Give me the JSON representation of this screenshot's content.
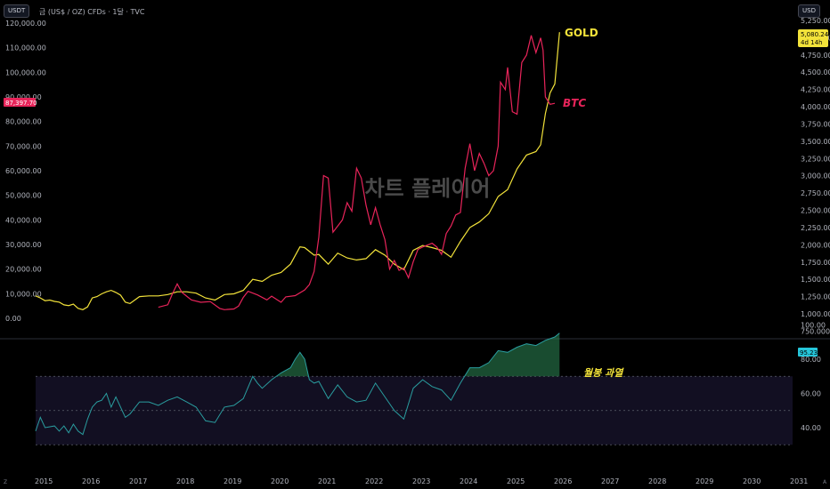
{
  "header": {
    "left_currency": "USDT",
    "right_currency": "USD",
    "symbol_title": "금 (US$ / OZ) CFDs · 1달 · TVC"
  },
  "watermark": "차트 플레이어",
  "badges": {
    "gold_price": "5,080.240",
    "gold_countdown": "4d 14h",
    "btc_price": "87,397.70",
    "rsi_value": "95.23"
  },
  "colors": {
    "gold": "#f2e23a",
    "btc": "#e8245a",
    "rsi": "#2a9d9f",
    "rsi_overbought": "#2e8b57",
    "background": "#000000"
  },
  "labels": {
    "gold": "GOLD",
    "btc": "BTC",
    "rsi_note": "월봉 과열"
  },
  "bottom_icons": {
    "left": "Z",
    "right": "A"
  },
  "chart_data": [
    {
      "type": "line",
      "title": "",
      "x_ticks": [
        "2015",
        "2016",
        "2017",
        "2018",
        "2019",
        "2020",
        "2021",
        "2022",
        "2023",
        "2024",
        "2025",
        "2026",
        "2027",
        "2028",
        "2029",
        "2030",
        "2031"
      ],
      "btc_axis_ticks": [
        "120,000.00",
        "110,000.00",
        "100,000.00",
        "90,000.00",
        "80,000.00",
        "70,000.00",
        "60,000.00",
        "50,000.00",
        "40,000.00",
        "30,000.00",
        "20,000.00",
        "10,000.00",
        "0.00"
      ],
      "btc_ylim": [
        0,
        120000
      ],
      "gold_axis_ticks": [
        "5,250.000",
        "5,000.000",
        "4,750.000",
        "4,500.000",
        "4,250.000",
        "4,000.000",
        "3,750.000",
        "3,500.000",
        "3,250.000",
        "3,000.000",
        "2,750.000",
        "2,500.000",
        "2,250.000",
        "2,000.000",
        "1,750.000",
        "1,500.000",
        "1,250.000",
        "1,000.000",
        "750.000"
      ],
      "gold_ylim": [
        750,
        5250
      ],
      "series": [
        {
          "name": "GOLD",
          "axis": "right",
          "points": [
            [
              2015.0,
              1260
            ],
            [
              2015.1,
              1230
            ],
            [
              2015.2,
              1190
            ],
            [
              2015.3,
              1200
            ],
            [
              2015.4,
              1180
            ],
            [
              2015.5,
              1170
            ],
            [
              2015.6,
              1130
            ],
            [
              2015.7,
              1120
            ],
            [
              2015.8,
              1140
            ],
            [
              2015.9,
              1080
            ],
            [
              2016.0,
              1060
            ],
            [
              2016.1,
              1100
            ],
            [
              2016.2,
              1230
            ],
            [
              2016.3,
              1250
            ],
            [
              2016.4,
              1290
            ],
            [
              2016.5,
              1320
            ],
            [
              2016.6,
              1340
            ],
            [
              2016.7,
              1310
            ],
            [
              2016.8,
              1270
            ],
            [
              2016.9,
              1170
            ],
            [
              2017.0,
              1150
            ],
            [
              2017.2,
              1250
            ],
            [
              2017.4,
              1260
            ],
            [
              2017.6,
              1260
            ],
            [
              2017.8,
              1280
            ],
            [
              2018.0,
              1320
            ],
            [
              2018.2,
              1320
            ],
            [
              2018.4,
              1300
            ],
            [
              2018.6,
              1230
            ],
            [
              2018.8,
              1200
            ],
            [
              2019.0,
              1280
            ],
            [
              2019.2,
              1290
            ],
            [
              2019.4,
              1340
            ],
            [
              2019.6,
              1500
            ],
            [
              2019.8,
              1470
            ],
            [
              2020.0,
              1560
            ],
            [
              2020.2,
              1600
            ],
            [
              2020.4,
              1720
            ],
            [
              2020.6,
              1970
            ],
            [
              2020.7,
              1960
            ],
            [
              2020.9,
              1850
            ],
            [
              2021.0,
              1860
            ],
            [
              2021.2,
              1720
            ],
            [
              2021.4,
              1880
            ],
            [
              2021.6,
              1810
            ],
            [
              2021.8,
              1780
            ],
            [
              2022.0,
              1800
            ],
            [
              2022.2,
              1930
            ],
            [
              2022.4,
              1850
            ],
            [
              2022.6,
              1720
            ],
            [
              2022.8,
              1640
            ],
            [
              2023.0,
              1920
            ],
            [
              2023.2,
              1990
            ],
            [
              2023.4,
              1960
            ],
            [
              2023.6,
              1920
            ],
            [
              2023.8,
              1820
            ],
            [
              2024.0,
              2050
            ],
            [
              2024.2,
              2250
            ],
            [
              2024.4,
              2330
            ],
            [
              2024.6,
              2450
            ],
            [
              2024.8,
              2700
            ],
            [
              2025.0,
              2800
            ],
            [
              2025.2,
              3100
            ],
            [
              2025.4,
              3300
            ],
            [
              2025.6,
              3350
            ],
            [
              2025.7,
              3450
            ],
            [
              2025.8,
              3900
            ],
            [
              2025.9,
              4200
            ],
            [
              2026.0,
              4330
            ],
            [
              2026.1,
              5080
            ]
          ]
        },
        {
          "name": "BTC",
          "axis": "left",
          "points": [
            [
              2017.6,
              4500
            ],
            [
              2017.8,
              5500
            ],
            [
              2017.9,
              10000
            ],
            [
              2018.0,
              14000
            ],
            [
              2018.1,
              10500
            ],
            [
              2018.2,
              9000
            ],
            [
              2018.3,
              7500
            ],
            [
              2018.5,
              6500
            ],
            [
              2018.7,
              6800
            ],
            [
              2018.9,
              4000
            ],
            [
              2019.0,
              3500
            ],
            [
              2019.2,
              3800
            ],
            [
              2019.3,
              5000
            ],
            [
              2019.4,
              8500
            ],
            [
              2019.5,
              11000
            ],
            [
              2019.7,
              9500
            ],
            [
              2019.9,
              7500
            ],
            [
              2020.0,
              9000
            ],
            [
              2020.2,
              6500
            ],
            [
              2020.3,
              8700
            ],
            [
              2020.5,
              9200
            ],
            [
              2020.7,
              11500
            ],
            [
              2020.8,
              13700
            ],
            [
              2020.9,
              19000
            ],
            [
              2021.0,
              33000
            ],
            [
              2021.1,
              58000
            ],
            [
              2021.2,
              57000
            ],
            [
              2021.3,
              35000
            ],
            [
              2021.5,
              40000
            ],
            [
              2021.6,
              47000
            ],
            [
              2021.7,
              43500
            ],
            [
              2021.8,
              61000
            ],
            [
              2021.9,
              57000
            ],
            [
              2022.0,
              46000
            ],
            [
              2022.1,
              38000
            ],
            [
              2022.2,
              45000
            ],
            [
              2022.3,
              38000
            ],
            [
              2022.4,
              32000
            ],
            [
              2022.5,
              20000
            ],
            [
              2022.6,
              23500
            ],
            [
              2022.7,
              19500
            ],
            [
              2022.8,
              20500
            ],
            [
              2022.9,
              16500
            ],
            [
              2023.0,
              23000
            ],
            [
              2023.1,
              28000
            ],
            [
              2023.2,
              29000
            ],
            [
              2023.4,
              30500
            ],
            [
              2023.5,
              29000
            ],
            [
              2023.6,
              26000
            ],
            [
              2023.7,
              34500
            ],
            [
              2023.8,
              37500
            ],
            [
              2023.9,
              42000
            ],
            [
              2024.0,
              43000
            ],
            [
              2024.1,
              61000
            ],
            [
              2024.2,
              71000
            ],
            [
              2024.3,
              60000
            ],
            [
              2024.4,
              67000
            ],
            [
              2024.5,
              63000
            ],
            [
              2024.6,
              58000
            ],
            [
              2024.7,
              60000
            ],
            [
              2024.8,
              70000
            ],
            [
              2024.85,
              96000
            ],
            [
              2024.95,
              93000
            ],
            [
              2025.0,
              102000
            ],
            [
              2025.1,
              84000
            ],
            [
              2025.2,
              83000
            ],
            [
              2025.3,
              104000
            ],
            [
              2025.4,
              107000
            ],
            [
              2025.5,
              115000
            ],
            [
              2025.6,
              108000
            ],
            [
              2025.7,
              114000
            ],
            [
              2025.75,
              109000
            ],
            [
              2025.8,
              90000
            ],
            [
              2025.9,
              87000
            ],
            [
              2026.0,
              87400
            ]
          ]
        }
      ]
    },
    {
      "type": "line",
      "title": "",
      "y_ticks": [
        "100.00",
        "80.00",
        "60.00",
        "40.00"
      ],
      "ylim": [
        28,
        102
      ],
      "overbought_level": 70,
      "midline_level": 50,
      "oversold_level": 30,
      "series": [
        {
          "name": "",
          "points": [
            [
              2015.0,
              38
            ],
            [
              2015.1,
              46
            ],
            [
              2015.2,
              40
            ],
            [
              2015.4,
              41
            ],
            [
              2015.5,
              38
            ],
            [
              2015.6,
              41
            ],
            [
              2015.7,
              37
            ],
            [
              2015.8,
              42
            ],
            [
              2015.9,
              38
            ],
            [
              2016.0,
              36
            ],
            [
              2016.1,
              45
            ],
            [
              2016.2,
              52
            ],
            [
              2016.3,
              55
            ],
            [
              2016.4,
              56
            ],
            [
              2016.5,
              60
            ],
            [
              2016.6,
              52
            ],
            [
              2016.7,
              58
            ],
            [
              2016.8,
              52
            ],
            [
              2016.9,
              46
            ],
            [
              2017.0,
              48
            ],
            [
              2017.2,
              55
            ],
            [
              2017.4,
              55
            ],
            [
              2017.6,
              53
            ],
            [
              2017.8,
              56
            ],
            [
              2018.0,
              58
            ],
            [
              2018.2,
              55
            ],
            [
              2018.4,
              52
            ],
            [
              2018.6,
              44
            ],
            [
              2018.8,
              43
            ],
            [
              2019.0,
              52
            ],
            [
              2019.2,
              53
            ],
            [
              2019.4,
              57
            ],
            [
              2019.6,
              70
            ],
            [
              2019.7,
              66
            ],
            [
              2019.8,
              63
            ],
            [
              2020.0,
              68
            ],
            [
              2020.2,
              72
            ],
            [
              2020.4,
              75
            ],
            [
              2020.5,
              80
            ],
            [
              2020.6,
              84
            ],
            [
              2020.7,
              80
            ],
            [
              2020.8,
              68
            ],
            [
              2020.9,
              66
            ],
            [
              2021.0,
              67
            ],
            [
              2021.2,
              57
            ],
            [
              2021.4,
              65
            ],
            [
              2021.6,
              58
            ],
            [
              2021.8,
              55
            ],
            [
              2022.0,
              56
            ],
            [
              2022.2,
              66
            ],
            [
              2022.4,
              58
            ],
            [
              2022.6,
              50
            ],
            [
              2022.8,
              45
            ],
            [
              2023.0,
              63
            ],
            [
              2023.2,
              68
            ],
            [
              2023.4,
              64
            ],
            [
              2023.6,
              62
            ],
            [
              2023.8,
              56
            ],
            [
              2024.0,
              66
            ],
            [
              2024.2,
              75
            ],
            [
              2024.4,
              75
            ],
            [
              2024.6,
              78
            ],
            [
              2024.8,
              85
            ],
            [
              2025.0,
              84
            ],
            [
              2025.2,
              87
            ],
            [
              2025.4,
              89
            ],
            [
              2025.6,
              88
            ],
            [
              2025.8,
              91
            ],
            [
              2026.0,
              93
            ],
            [
              2026.1,
              95.23
            ]
          ]
        }
      ]
    }
  ]
}
